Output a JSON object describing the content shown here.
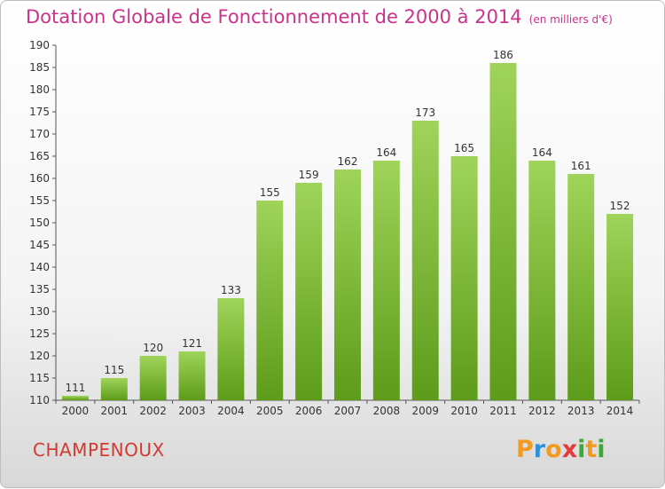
{
  "header": {
    "title": "Dotation Globale de Fonctionnement de 2000 à 2014",
    "unit": "(en milliers d'€)"
  },
  "footer": {
    "commune": "CHAMPENOUX",
    "logo": {
      "letters": [
        "P",
        "r",
        "o",
        "x",
        "i",
        "t",
        "i"
      ],
      "colors": [
        "#f29a1f",
        "#2f8fd8",
        "#f29a1f",
        "#e8383d",
        "#3aaa35",
        "#f29a1f",
        "#3aaa35"
      ]
    }
  },
  "chart_data": {
    "type": "bar",
    "categories": [
      "2000",
      "2001",
      "2002",
      "2003",
      "2004",
      "2005",
      "2006",
      "2007",
      "2008",
      "2009",
      "2010",
      "2011",
      "2012",
      "2013",
      "2014"
    ],
    "values": [
      111,
      115,
      120,
      121,
      133,
      155,
      159,
      162,
      164,
      173,
      165,
      186,
      164,
      161,
      152
    ],
    "ylim": [
      110,
      190
    ],
    "yticks": [
      110,
      115,
      120,
      125,
      130,
      135,
      140,
      145,
      150,
      155,
      160,
      165,
      170,
      175,
      180,
      185,
      190
    ],
    "grid": false,
    "colors": {
      "bar_top": "#9fd45a",
      "bar_bottom": "#5d9b1a",
      "label": "#333333"
    }
  }
}
